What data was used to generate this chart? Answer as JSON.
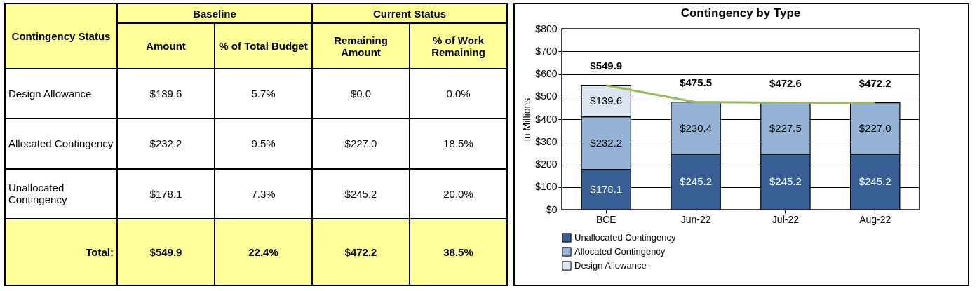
{
  "chart_data": [
    {
      "type": "other",
      "annotations": [
        "Contingency Status",
        "Baseline",
        "Current Status",
        "Amount",
        "% of Total Budget",
        "Remaining Amount",
        "% of Work Remaining",
        "Design Allowance",
        "$139.6",
        "5.7%",
        "$0.0",
        "0.0%",
        "Allocated Contingency",
        "$232.2",
        "9.5%",
        "$227.0",
        "18.5%",
        "Unallocated Contingency",
        "$178.1",
        "7.3%",
        "$245.2",
        "20.0%",
        "Total:",
        "$549.9",
        "22.4%",
        "$472.2",
        "38.5%"
      ]
    },
    {
      "type": "bar",
      "title": "Contingency by Type",
      "ylabel": "in Millions",
      "stacked": true,
      "grid": "y",
      "legend": "bottom",
      "categories": [
        "BCE",
        "Jun-22",
        "Jul-22",
        "Aug-22"
      ],
      "ylim": [
        0,
        800
      ],
      "yticks": [
        {
          "value": 0,
          "label": "$0"
        },
        {
          "value": 100,
          "label": "$100"
        },
        {
          "value": 200,
          "label": "$200"
        },
        {
          "value": 300,
          "label": "$300"
        },
        {
          "value": 400,
          "label": "$400"
        },
        {
          "value": 500,
          "label": "$500"
        },
        {
          "value": 600,
          "label": "$600"
        },
        {
          "value": 700,
          "label": "$700"
        },
        {
          "value": 800,
          "label": "$800"
        }
      ],
      "series": [
        {
          "name": "Unallocated Contingency",
          "color": "#375f93",
          "values": [
            178.1,
            245.2,
            245.2,
            245.2
          ],
          "value_labels": [
            "$178.1",
            "$245.2",
            "$245.2",
            "$245.2"
          ]
        },
        {
          "name": "Allocated Contingency",
          "color": "#95b3d7",
          "values": [
            232.2,
            230.4,
            227.5,
            227.0
          ],
          "value_labels": [
            "$232.2",
            "$230.4",
            "$227.5",
            "$227.0"
          ]
        },
        {
          "name": "Design Allowance",
          "color": "#dce6f2",
          "values": [
            139.6,
            null,
            null,
            null
          ],
          "value_labels": [
            "$139.6",
            null,
            null,
            null
          ]
        },
        {
          "type": "line",
          "color": "#9bbb59",
          "values": [
            549.9,
            475.5,
            472.6,
            472.2
          ],
          "value_labels": [
            "$549.9",
            "$475.5",
            "$472.6",
            "$472.2"
          ]
        }
      ]
    }
  ]
}
